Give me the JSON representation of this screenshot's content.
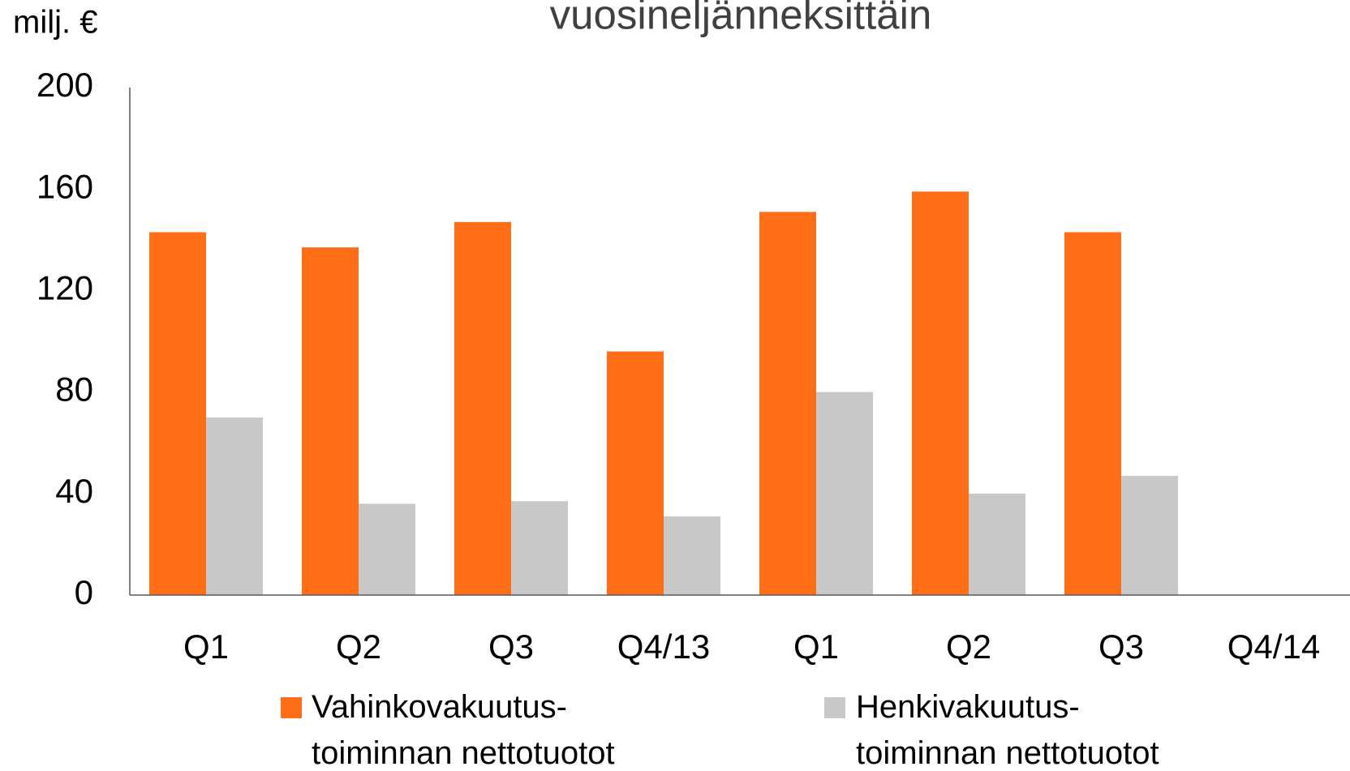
{
  "chart_data": {
    "type": "bar",
    "title": "vuosineljänneksittäin",
    "y_label": "milj. €",
    "categories": [
      "Q1",
      "Q2",
      "Q3",
      "Q4/13",
      "Q1",
      "Q2",
      "Q3",
      "Q4/14"
    ],
    "series": [
      {
        "name": "Vahinkovakuutus-\ntoiminnan nettotuotot",
        "color": "#ff6d14",
        "values": [
          143,
          137,
          147,
          96,
          151,
          159,
          143,
          null
        ]
      },
      {
        "name": "Henkivakuutus-\ntoiminnan nettotuotot",
        "color": "#c8c8c8",
        "values": [
          70,
          36,
          37,
          31,
          80,
          40,
          47,
          null
        ]
      }
    ],
    "ylim": [
      0,
      200
    ],
    "yticks": [
      0,
      40,
      80,
      120,
      160,
      200
    ],
    "grid": false
  }
}
